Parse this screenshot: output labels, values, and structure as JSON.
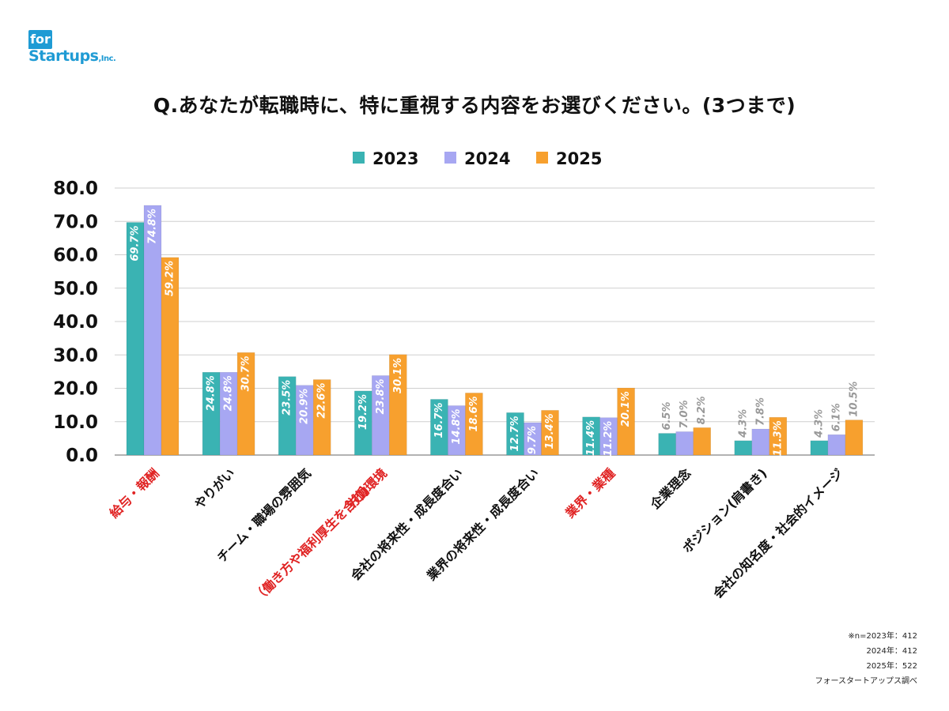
{
  "logo": {
    "box": "for",
    "main": "Startups",
    "suffix": ",Inc."
  },
  "title": "Q.あなたが転職時に、特に重視する内容をお選びください。(3つまで)",
  "notes": [
    "※n=2023年：412",
    "2024年：412",
    "2025年：522",
    "フォースタートアップス調べ"
  ],
  "colors": {
    "2023": "#3ab3b3",
    "2024": "#a7a7f2",
    "2025": "#f7a02e",
    "highlight": "#e02424",
    "label_inside": "#ffffff",
    "label_outside": "#999999"
  },
  "chart_data": {
    "type": "bar",
    "title": "",
    "xlabel": "",
    "ylabel": "",
    "ylim": [
      0,
      80
    ],
    "yticks": [
      "0.0",
      "10.0",
      "20.0",
      "30.0",
      "40.0",
      "50.0",
      "60.0",
      "70.0",
      "80.0"
    ],
    "grid": true,
    "legend_position": "top-center",
    "value_suffix": "%",
    "categories": [
      [
        "給与・報酬"
      ],
      [
        "やりがい"
      ],
      [
        "チーム・職場の雰囲気"
      ],
      [
        "労働環境",
        "（働き方や福利厚生を含む）"
      ],
      [
        "会社の将来性・成長度合い"
      ],
      [
        "業界の将来性・成長度合い"
      ],
      [
        "業界・業種"
      ],
      [
        "企業理念"
      ],
      [
        "ポジション(肩書き)"
      ],
      [
        "会社の知名度・社会的イメージ"
      ]
    ],
    "highlighted_categories": [
      0,
      3,
      6
    ],
    "series": [
      {
        "name": "2023",
        "values": [
          69.7,
          24.8,
          23.5,
          19.2,
          16.7,
          12.7,
          11.4,
          6.5,
          4.3,
          4.3
        ]
      },
      {
        "name": "2024",
        "values": [
          74.8,
          24.8,
          20.9,
          23.8,
          14.8,
          9.7,
          11.2,
          7.0,
          7.8,
          6.1
        ]
      },
      {
        "name": "2025",
        "values": [
          59.2,
          30.7,
          22.6,
          30.1,
          18.6,
          13.4,
          20.1,
          8.2,
          11.3,
          10.5
        ]
      }
    ]
  }
}
